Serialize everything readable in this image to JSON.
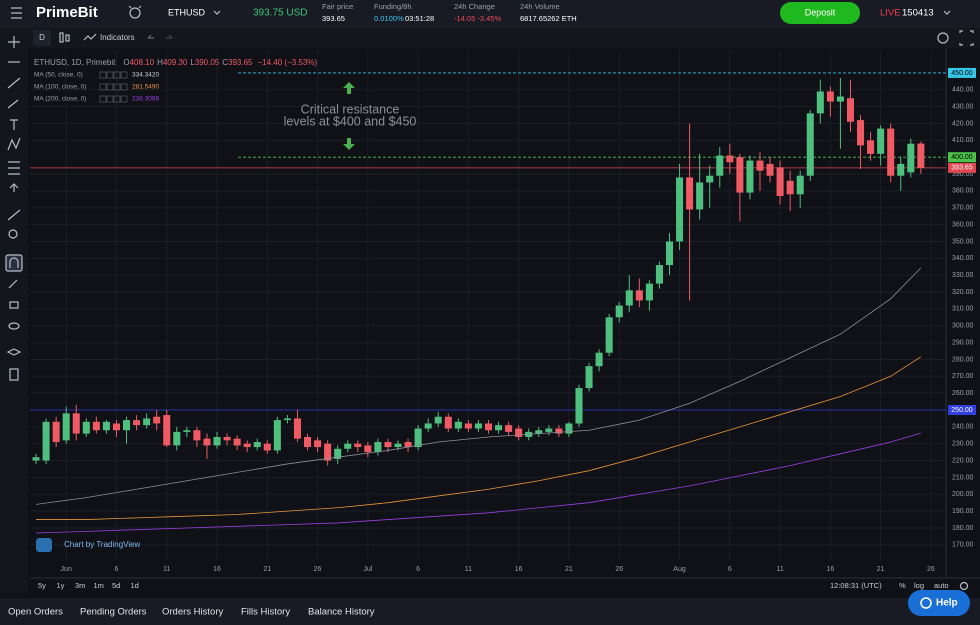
{
  "header": {
    "logo": "PrimeBit",
    "symbol": "ETHUSD",
    "last_price": "393.75 USD",
    "fair_price": {
      "label": "Fair price",
      "value": "393.65"
    },
    "funding": {
      "label": "Funding/8h",
      "rate": "0.0100%",
      "countdown": "03:51:28"
    },
    "change": {
      "label": "24h Change",
      "value": "-14.05 -3.45%"
    },
    "volume": {
      "label": "24h Volume",
      "value": "6817.65262 ETH"
    },
    "deposit": "Deposit",
    "live": "LIVE",
    "account": "150413"
  },
  "toolbar": {
    "interval": "D",
    "indicators": "Indicators"
  },
  "legend": {
    "symbol": "ETHUSD, 1D, Primebit",
    "o": "O",
    "open": "408.10",
    "h": "H",
    "high": "409.30",
    "l": "L",
    "low": "390.05",
    "c": "C",
    "close": "393.65",
    "change": "−14.40 (−3.53%)"
  },
  "chart_data": {
    "type": "candlestick",
    "annotation": [
      "Critical resistance",
      "levels at $400 and $450"
    ],
    "up_color": "#4fbf7f",
    "down_color": "#ef5a64",
    "open": [
      220,
      220,
      243,
      232,
      248,
      236,
      243,
      238,
      242,
      238,
      244,
      241,
      246,
      247,
      229,
      237,
      238,
      233,
      229,
      234,
      233,
      230,
      228,
      230,
      226,
      244,
      245,
      234,
      232,
      230,
      221,
      227,
      230,
      229,
      225,
      231,
      228,
      231,
      228,
      239,
      242,
      246,
      239,
      242,
      239,
      242,
      238,
      241,
      239,
      234,
      236,
      237,
      239,
      236,
      242,
      263,
      276,
      284,
      305,
      312,
      321,
      315,
      325,
      336,
      350,
      388,
      369,
      385,
      389,
      401,
      400,
      379,
      398,
      396,
      394,
      386,
      378,
      389,
      426,
      439,
      433,
      435,
      422,
      410,
      402,
      417,
      389,
      391,
      408.1
    ],
    "high": [
      224,
      245,
      246,
      252,
      253,
      245,
      246,
      244,
      244,
      246,
      247,
      248,
      250,
      250,
      240,
      240,
      240,
      236,
      237,
      236,
      235,
      232,
      233,
      232,
      246,
      247,
      250,
      236,
      234,
      232,
      229,
      232,
      232,
      231,
      233,
      233,
      232,
      233,
      241,
      245,
      249,
      248,
      245,
      244,
      244,
      244,
      243,
      243,
      241,
      239,
      240,
      241,
      241,
      243,
      265,
      278,
      286,
      307,
      314,
      330,
      328,
      327,
      338,
      355,
      396,
      420,
      402,
      395,
      406,
      408,
      402,
      401,
      403,
      400,
      398,
      392,
      392,
      428,
      446,
      442,
      447,
      446,
      425,
      415,
      419,
      420,
      400,
      411,
      409.3
    ],
    "low": [
      218,
      218,
      228,
      230,
      232,
      234,
      236,
      236,
      234,
      230,
      238,
      239,
      238,
      228,
      226,
      234,
      228,
      221,
      227,
      229,
      226,
      225,
      226,
      224,
      224,
      242,
      231,
      226,
      225,
      217,
      218,
      225,
      225,
      222,
      223,
      225,
      226,
      225,
      226,
      237,
      240,
      237,
      237,
      237,
      237,
      236,
      236,
      235,
      232,
      232,
      234,
      235,
      234,
      234,
      240,
      261,
      273,
      282,
      302,
      308,
      311,
      309,
      322,
      330,
      345,
      315,
      363,
      370,
      382,
      390,
      362,
      375,
      380,
      385,
      372,
      368,
      370,
      386,
      420,
      424,
      405,
      415,
      393,
      398,
      395,
      385,
      380,
      388,
      390.05
    ],
    "close": [
      222,
      243,
      231,
      248,
      236,
      243,
      238,
      243,
      238,
      244,
      241,
      245,
      242,
      229,
      237,
      238,
      232,
      229,
      234,
      232,
      229,
      228,
      231,
      226,
      244,
      245,
      233,
      228,
      228,
      220,
      227,
      230,
      228,
      225,
      231,
      228,
      230,
      228,
      239,
      242,
      246,
      239,
      243,
      239,
      242,
      238,
      241,
      237,
      234,
      237,
      238,
      239,
      236,
      242,
      263,
      276,
      284,
      305,
      312,
      321,
      315,
      325,
      336,
      350,
      388,
      369,
      385,
      389,
      401,
      397,
      379,
      398,
      392,
      389,
      377,
      378,
      389,
      426,
      439,
      433,
      436,
      421,
      407,
      402,
      417,
      389,
      396,
      408,
      393.65
    ],
    "moving_averages": [
      {
        "name": "MA (50, close, 0)",
        "value_label": "334.3420",
        "color": "#8b8f99",
        "x": [
          0,
          5,
          10,
          15,
          20,
          25,
          30,
          35,
          40,
          45,
          50,
          55,
          60,
          65,
          70,
          75,
          80,
          85,
          88
        ],
        "values": [
          194,
          198,
          203,
          208,
          213,
          218,
          222,
          226,
          231,
          234,
          236,
          238,
          244,
          254,
          267,
          281,
          295,
          316,
          334.342
        ]
      },
      {
        "name": "MA (100, close, 0)",
        "value_label": "281.5490",
        "color": "#e8963c",
        "x": [
          0,
          5,
          10,
          15,
          20,
          25,
          30,
          35,
          40,
          45,
          50,
          55,
          60,
          65,
          70,
          75,
          80,
          85,
          88
        ],
        "values": [
          185,
          185,
          186,
          187,
          188,
          190,
          192,
          195,
          199,
          203,
          208,
          214,
          222,
          231,
          240,
          249,
          258,
          270,
          281.549
        ]
      },
      {
        "name": "MA (200, close, 0)",
        "value_label": "236.3068",
        "color": "#9b3fe0",
        "x": [
          0,
          5,
          10,
          15,
          20,
          25,
          30,
          35,
          40,
          45,
          50,
          55,
          60,
          65,
          70,
          75,
          80,
          85,
          88
        ],
        "values": [
          177,
          178,
          179,
          180,
          181,
          182,
          183,
          185,
          187,
          189,
          192,
          195,
          200,
          205,
          211,
          217,
          224,
          231,
          236.3068
        ]
      }
    ],
    "price_lines": [
      {
        "value": 450,
        "label": "450.00",
        "color": "#35c6e8",
        "dashed": true
      },
      {
        "value": 400,
        "label": "400.00",
        "color": "#4cc24a",
        "dashed": true
      },
      {
        "value": 393.65,
        "label": "393.65",
        "color": "#e04650",
        "dashed": false
      },
      {
        "value": 250,
        "label": "250.00",
        "color": "#2f3fe0",
        "dashed": false
      }
    ],
    "xlim": [
      -0.6,
      90.5
    ],
    "ylim": [
      161,
      463.6
    ],
    "xticks": [
      {
        "value": 3,
        "label": "Jun"
      },
      {
        "value": 8,
        "label": "6"
      },
      {
        "value": 13,
        "label": "11"
      },
      {
        "value": 18,
        "label": "16"
      },
      {
        "value": 23,
        "label": "21"
      },
      {
        "value": 28,
        "label": "26"
      },
      {
        "value": 33,
        "label": "Jul"
      },
      {
        "value": 38,
        "label": "6"
      },
      {
        "value": 43,
        "label": "11"
      },
      {
        "value": 48,
        "label": "16"
      },
      {
        "value": 53,
        "label": "21"
      },
      {
        "value": 58,
        "label": "26"
      },
      {
        "value": 64,
        "label": "Aug"
      },
      {
        "value": 69,
        "label": "6"
      },
      {
        "value": 74,
        "label": "11"
      },
      {
        "value": 79,
        "label": "16"
      },
      {
        "value": 84,
        "label": "21"
      },
      {
        "value": 89,
        "label": "26"
      }
    ],
    "yticks": [
      {
        "value": 170,
        "label": "170.00"
      },
      {
        "value": 180,
        "label": "180.00"
      },
      {
        "value": 190,
        "label": "190.00"
      },
      {
        "value": 200,
        "label": "200.00"
      },
      {
        "value": 210,
        "label": "210.00"
      },
      {
        "value": 220,
        "label": "220.00"
      },
      {
        "value": 230,
        "label": "230.00"
      },
      {
        "value": 240,
        "label": "240.00"
      },
      {
        "value": 260,
        "label": "260.00"
      },
      {
        "value": 270,
        "label": "270.00"
      },
      {
        "value": 280,
        "label": "280.00"
      },
      {
        "value": 290,
        "label": "290.00"
      },
      {
        "value": 300,
        "label": "300.00"
      },
      {
        "value": 310,
        "label": "310.00"
      },
      {
        "value": 320,
        "label": "320.00"
      },
      {
        "value": 330,
        "label": "330.00"
      },
      {
        "value": 340,
        "label": "340.00"
      },
      {
        "value": 350,
        "label": "350.00"
      },
      {
        "value": 360,
        "label": "360.00"
      },
      {
        "value": 370,
        "label": "370.00"
      },
      {
        "value": 380,
        "label": "380.00"
      },
      {
        "value": 390,
        "label": "390.00"
      },
      {
        "value": 410,
        "label": "410.00"
      },
      {
        "value": 420,
        "label": "420.00"
      },
      {
        "value": 430,
        "label": "430.00"
      },
      {
        "value": 440,
        "label": "440.00"
      }
    ],
    "grid": true
  },
  "attribution": "Chart by TradingView",
  "ranges": [
    "5y",
    "1y",
    "3m",
    "1m",
    "5d",
    "1d"
  ],
  "clock": "12:08:31 (UTC)",
  "scale_buttons": [
    "%",
    "log",
    "auto"
  ],
  "tabs": [
    "Open Orders",
    "Pending Orders",
    "Orders History",
    "Fills History",
    "Balance History"
  ],
  "help": "Help"
}
